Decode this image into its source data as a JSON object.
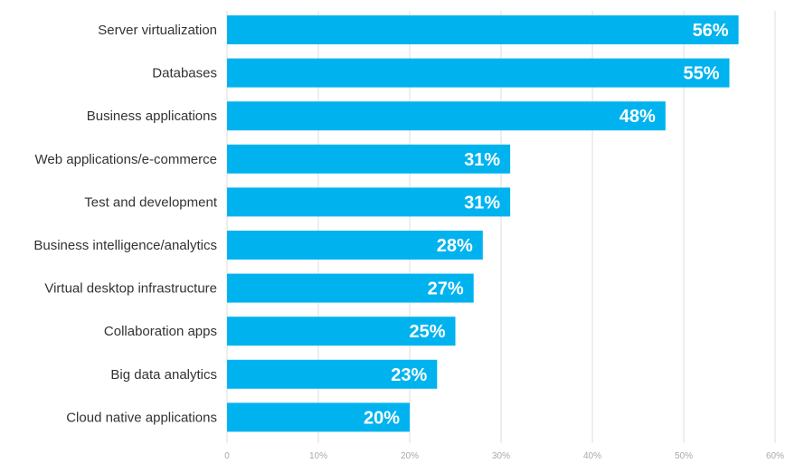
{
  "chart_data": {
    "type": "bar",
    "orientation": "horizontal",
    "categories": [
      "Server virtualization",
      "Databases",
      "Business applications",
      "Web applications/e-commerce",
      "Test and development",
      "Business intelligence/analytics",
      "Virtual desktop infrastructure",
      "Collaboration apps",
      "Big data analytics",
      "Cloud native applications"
    ],
    "values": [
      56,
      55,
      48,
      31,
      31,
      28,
      27,
      25,
      23,
      20
    ],
    "value_labels": [
      "56%",
      "55%",
      "48%",
      "31%",
      "31%",
      "28%",
      "27%",
      "25%",
      "23%",
      "20%"
    ],
    "x_ticks": [
      "0",
      "10%",
      "20%",
      "30%",
      "40%",
      "50%",
      "60%"
    ],
    "xlim": [
      0,
      60
    ],
    "grid": "vertical",
    "legend": "none",
    "bar_color": "#00b3ef",
    "grid_color": "#dcdcdc",
    "label_color": "#333333",
    "tick_color": "#a9a9a9"
  }
}
